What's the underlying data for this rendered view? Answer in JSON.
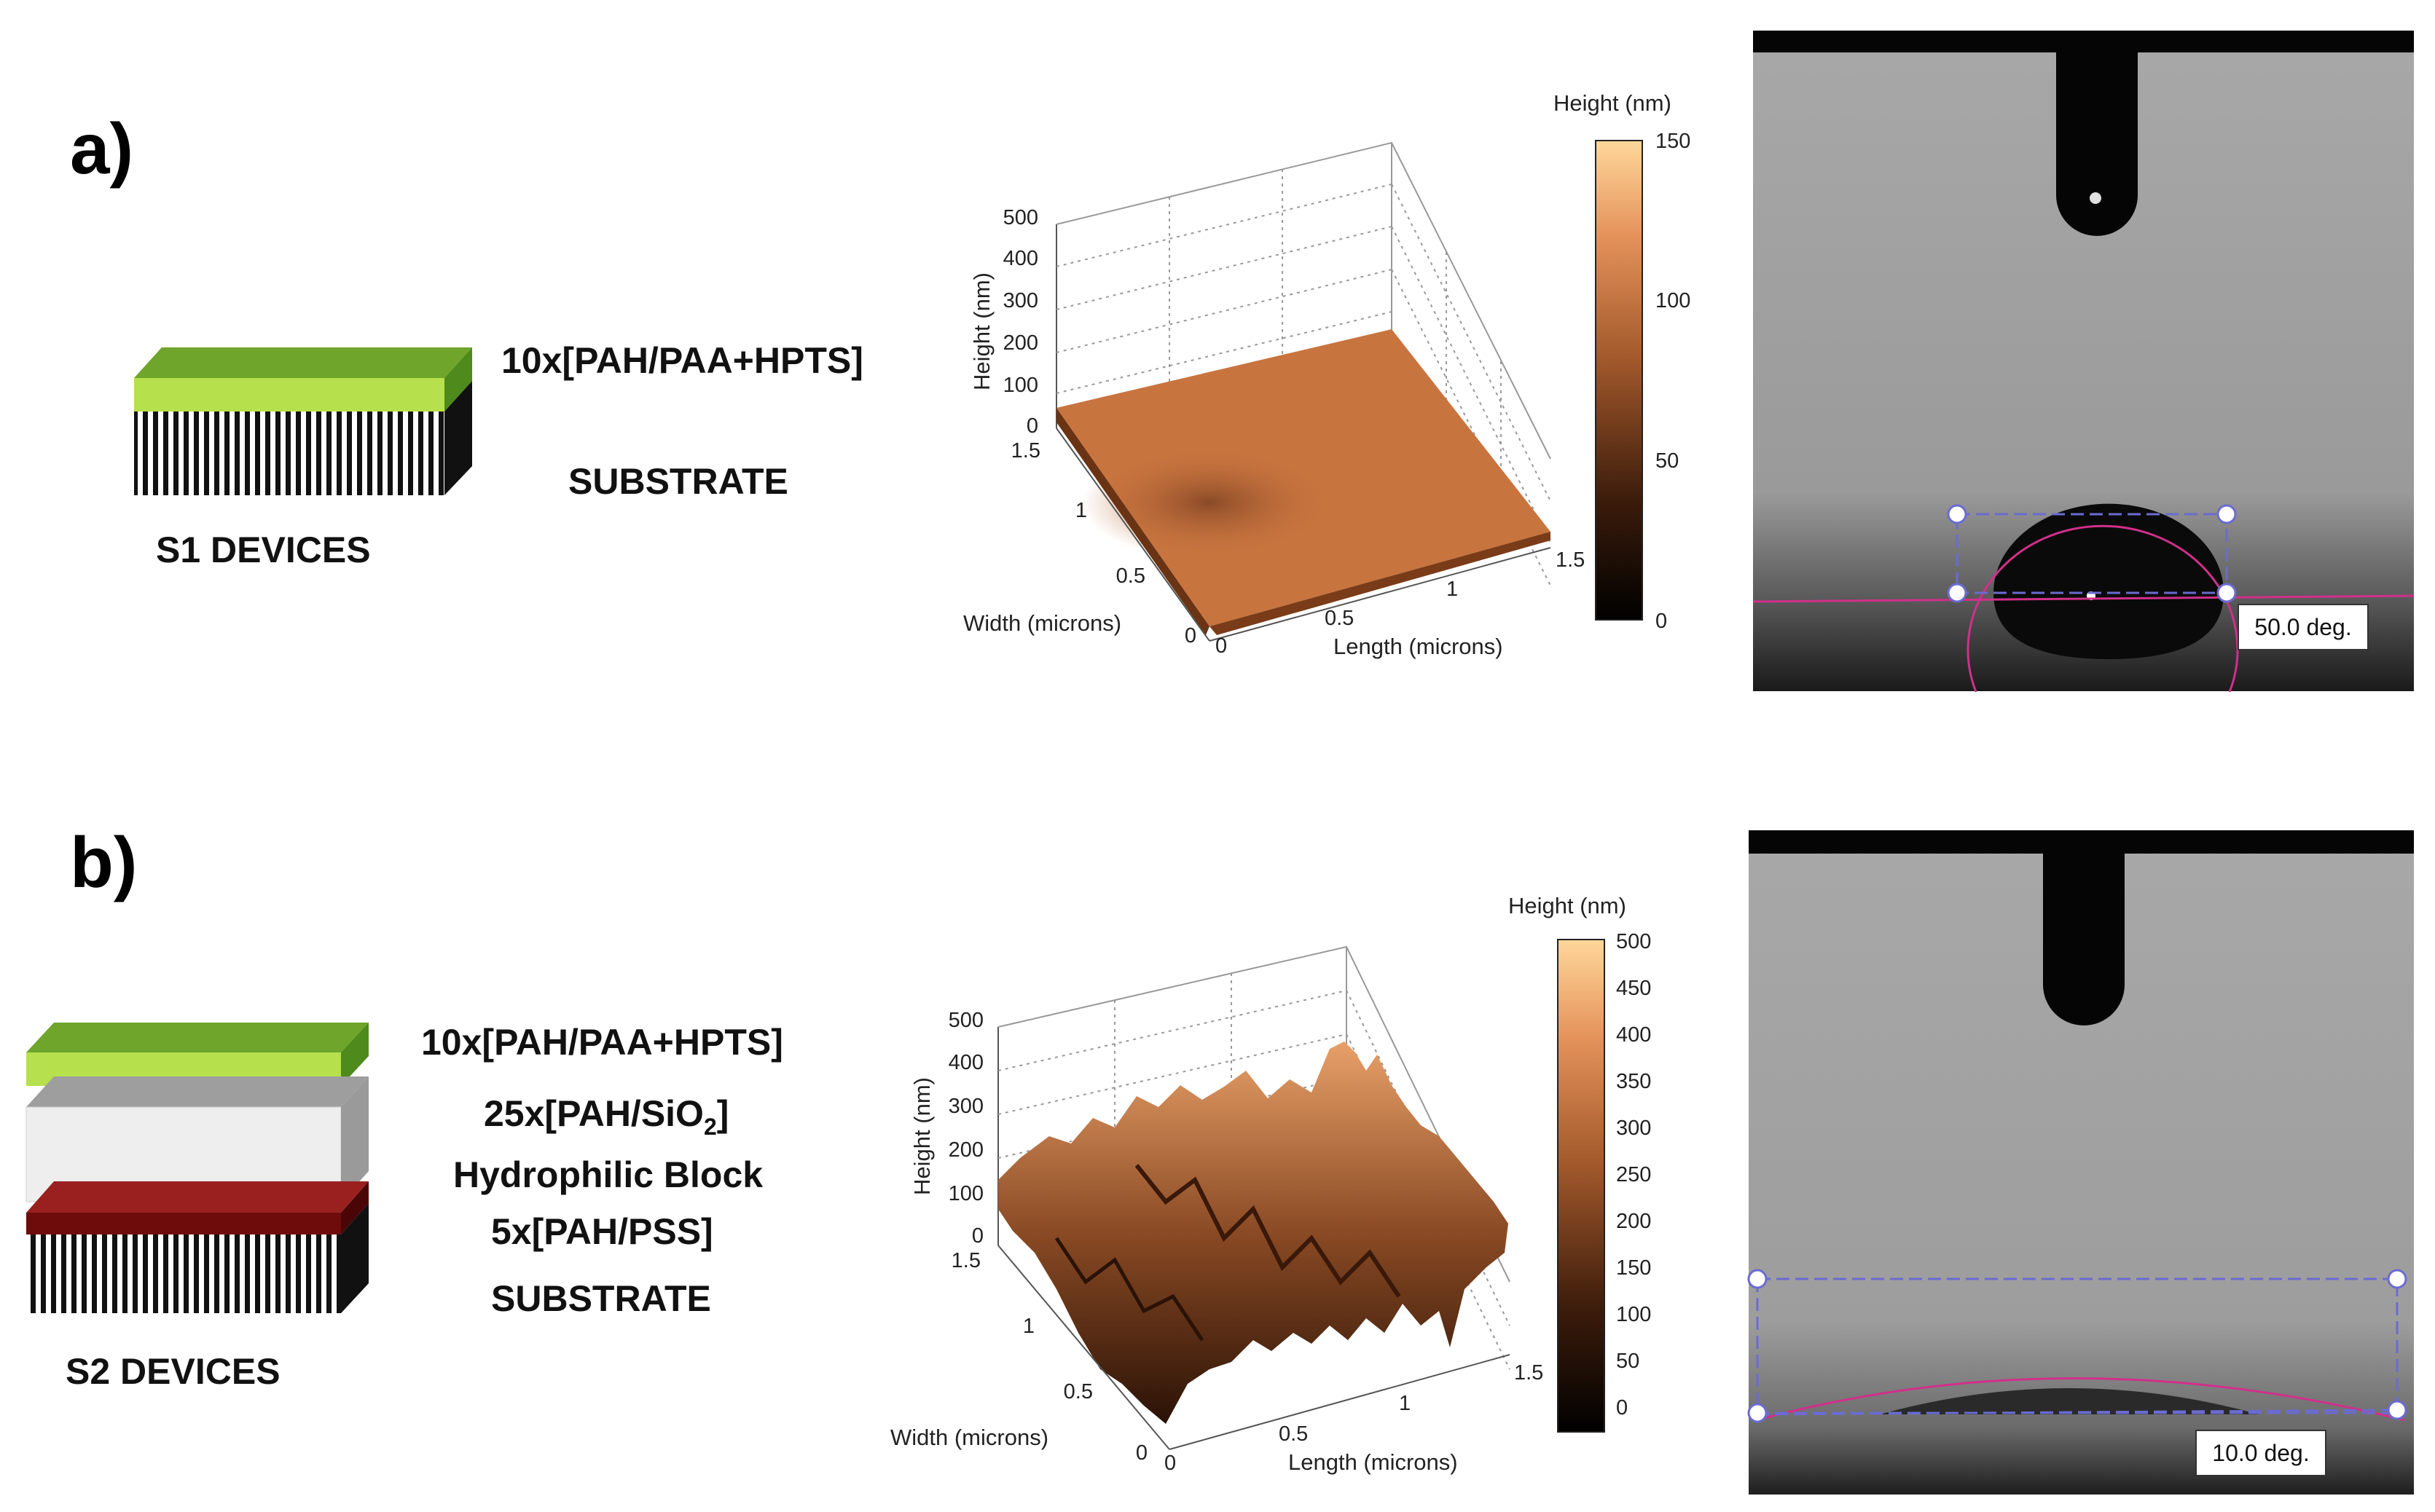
{
  "panels": [
    {
      "id": "a",
      "letter": "a)",
      "device_label": "S1 DEVICES",
      "layers": [
        "10x[PAH/PAA+HPTS]",
        "SUBSTRATE"
      ],
      "afm": {
        "zlabel": "Height (nm)",
        "xlabel": "Length (microns)",
        "ylabel": "Width (microns)",
        "z_ticks": [
          "500",
          "400",
          "300",
          "200",
          "100",
          "0"
        ],
        "x_ticks": [
          "0",
          "0.5",
          "1",
          "1.5"
        ],
        "y_ticks": [
          "1.5",
          "1",
          "0.5",
          "0"
        ],
        "colorbar_title": "Height (nm)",
        "colorbar_ticks": [
          "150",
          "100",
          "50",
          "0"
        ]
      },
      "contact_angle": "50.0 deg."
    },
    {
      "id": "b",
      "letter": "b)",
      "device_label": "S2 DEVICES",
      "layers": [
        "10x[PAH/PAA+HPTS]",
        "25x[PAH/SiO",
        "2",
        "]",
        "Hydrophilic Block",
        "5x[PAH/PSS]",
        "SUBSTRATE"
      ],
      "afm": {
        "zlabel": "Height (nm)",
        "xlabel": "Length (microns)",
        "ylabel": "Width (microns)",
        "z_ticks": [
          "500",
          "400",
          "300",
          "200",
          "100",
          "0"
        ],
        "x_ticks": [
          "0",
          "0.5",
          "1",
          "1.5"
        ],
        "y_ticks": [
          "1.5",
          "1",
          "0.5",
          "0"
        ],
        "colorbar_title": "Height (nm)",
        "colorbar_ticks": [
          "500",
          "450",
          "400",
          "350",
          "300",
          "250",
          "200",
          "150",
          "100",
          "50",
          "0"
        ]
      },
      "contact_angle": "10.0 deg."
    }
  ],
  "colors": {
    "green_top": "#7fba2c",
    "green_light": "#b6e04c",
    "maroon": "#7a1010",
    "afm_copper": "#c8743f",
    "photo_gray": "#9a9a9a",
    "magenta": "#d0308a",
    "selection_box": "#6b6bd0"
  }
}
